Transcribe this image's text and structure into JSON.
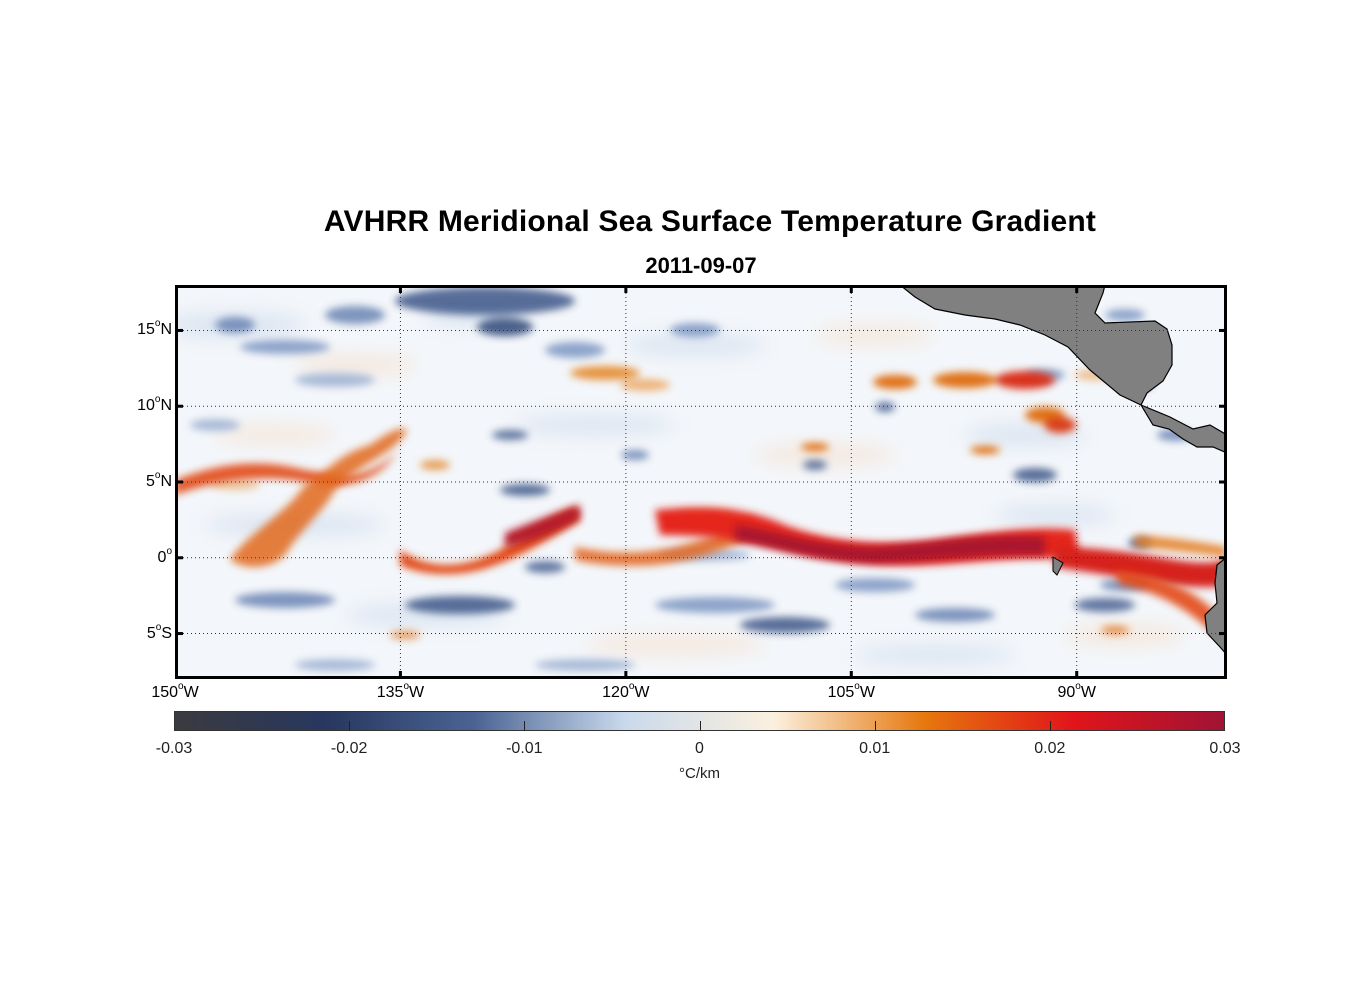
{
  "title": "AVHRR Meridional Sea Surface Temperature Gradient",
  "subtitle": "2011-09-07",
  "map": {
    "lon_range": [
      -150,
      -80
    ],
    "lat_range": [
      -8,
      18
    ],
    "lat_ticks": [
      {
        "value": 15,
        "num": "15",
        "hemi": "N"
      },
      {
        "value": 10,
        "num": "10",
        "hemi": "N"
      },
      {
        "value": 5,
        "num": "5",
        "hemi": "N"
      },
      {
        "value": 0,
        "num": "0",
        "hemi": ""
      },
      {
        "value": -5,
        "num": "5",
        "hemi": "S"
      }
    ],
    "lon_ticks": [
      {
        "value": -150,
        "num": "150",
        "hemi": "W"
      },
      {
        "value": -135,
        "num": "135",
        "hemi": "W"
      },
      {
        "value": -120,
        "num": "120",
        "hemi": "W"
      },
      {
        "value": -105,
        "num": "105",
        "hemi": "W"
      },
      {
        "value": -90,
        "num": "90",
        "hemi": "W"
      }
    ],
    "degree_symbol": "o",
    "land_color": "#808080",
    "gridlines": "dotted"
  },
  "colorbar": {
    "range": [
      -0.03,
      0.03
    ],
    "tick_labels": [
      "-0.03",
      "-0.02",
      "-0.01",
      "0",
      "0.01",
      "0.02",
      "0.03"
    ],
    "unit": "°C/km",
    "colors": [
      "#3b3b3f",
      "#27375e",
      "#4b6494",
      "#c9d9ec",
      "#fbf0de",
      "#e6780e",
      "#e1141a",
      "#a01335"
    ]
  }
}
